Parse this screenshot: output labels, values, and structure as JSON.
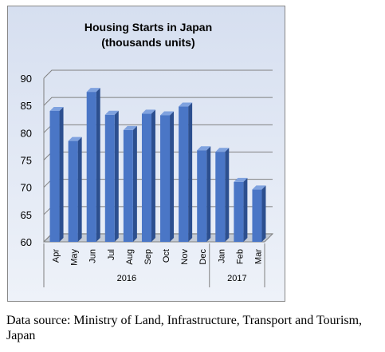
{
  "chart_data": {
    "type": "bar",
    "title": [
      "Housing Starts in Japan",
      "(thousands units)"
    ],
    "categories": [
      "Apr",
      "May",
      "Jun",
      "Jul",
      "Aug",
      "Sep",
      "Oct",
      "Nov",
      "Dec",
      "Jan",
      "Feb",
      "Mar"
    ],
    "values": [
      84.0,
      78.5,
      87.5,
      83.3,
      80.5,
      83.5,
      83.2,
      84.8,
      76.8,
      76.5,
      71.0,
      69.6
    ],
    "ylim": [
      60,
      90
    ],
    "yticks": [
      "60",
      "65",
      "70",
      "75",
      "80",
      "85",
      "90"
    ],
    "groups": [
      {
        "label": "2016",
        "count": 9
      },
      {
        "label": "2017",
        "count": 3
      }
    ],
    "grid": true,
    "legend": false,
    "xlabel": "",
    "ylabel": "",
    "colors": {
      "bar_front": "#4a76c6",
      "bar_side": "#2c4f8f",
      "bar_top": "#7fa2df",
      "grid": "#808080"
    }
  },
  "source": "Data source: Ministry of Land, Infrastructure, Transport and Tourism, Japan"
}
